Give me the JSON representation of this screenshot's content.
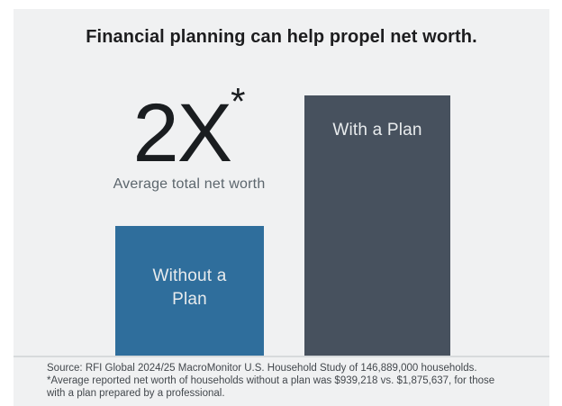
{
  "title": "Financial planning can help propel net worth.",
  "highlight": {
    "multiplier": "2X",
    "asterisk": "*",
    "caption": "Average total net worth"
  },
  "bars": [
    {
      "label": "Without a Plan",
      "color": "#2f6e9c"
    },
    {
      "label": "With a Plan",
      "color": "#47515e"
    }
  ],
  "source": {
    "lines": [
      "Source: RFI Global 2024/25 MacroMonitor U.S. Household Study of 146,889,000 households.",
      "*Average reported net worth of households without a plan was $939,218 vs. $1,875,637, for those",
      "with a plan prepared by a professional."
    ]
  },
  "colors": {
    "panel_background": "#f0f1f2",
    "bar_without_plan": "#2f6e9c",
    "bar_with_plan": "#47515e",
    "baseline": "#d7dadc",
    "title_text": "#1d1d1f",
    "caption_text": "#5c666d",
    "bar_label_text": "#e8ebed"
  },
  "chart_data": {
    "type": "bar",
    "categories": [
      "Without a Plan",
      "With a Plan"
    ],
    "values": [
      939218,
      1875637
    ],
    "value_unit": "USD, average reported net worth per household",
    "bar_height_ratio": [
      1,
      2
    ],
    "title": "Financial planning can help propel net worth.",
    "annotation": "2X* Average total net worth",
    "colors": [
      "#2f6e9c",
      "#47515e"
    ],
    "legend": "none",
    "grid": false,
    "axes_shown": false
  }
}
